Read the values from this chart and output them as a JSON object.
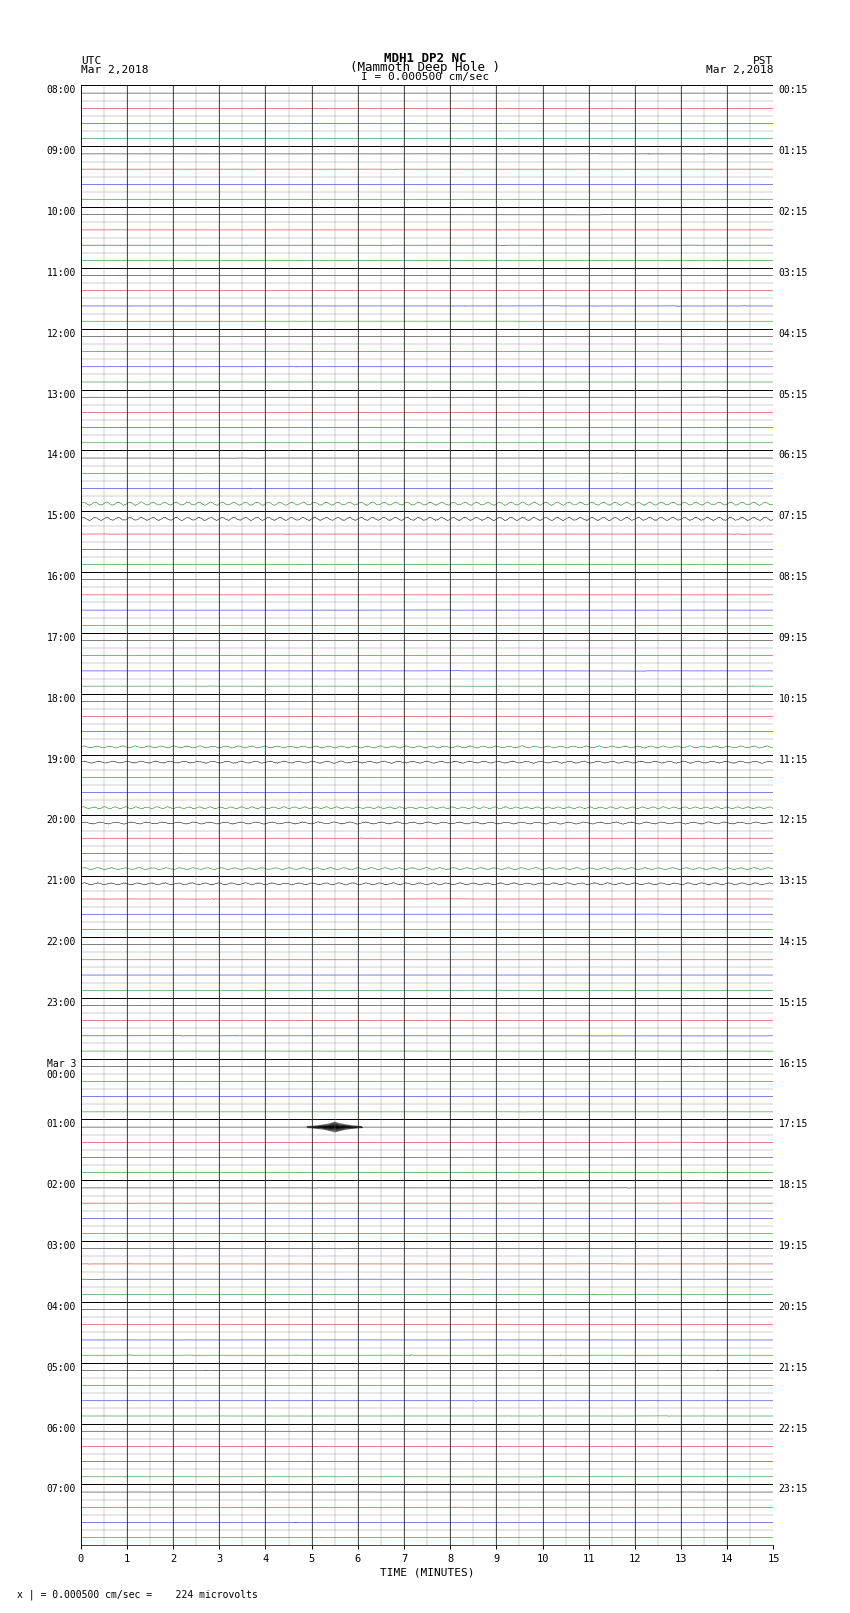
{
  "title_line1": "MDH1 DP2 NC",
  "title_line2": "(Mammoth Deep Hole )",
  "scale_label": "I = 0.000500 cm/sec",
  "left_label_top": "UTC",
  "left_label_date": "Mar 2,2018",
  "right_label_top": "PST",
  "right_label_date": "Mar 2,2018",
  "bottom_note": "x | = 0.000500 cm/sec =    224 microvolts",
  "xlabel": "TIME (MINUTES)",
  "hours_utc": [
    "08:00",
    "09:00",
    "10:00",
    "11:00",
    "12:00",
    "13:00",
    "14:00",
    "15:00",
    "16:00",
    "17:00",
    "18:00",
    "19:00",
    "20:00",
    "21:00",
    "22:00",
    "23:00",
    "Mar 3\n00:00",
    "01:00",
    "02:00",
    "03:00",
    "04:00",
    "05:00",
    "06:00",
    "07:00"
  ],
  "hours_pst": [
    "00:15",
    "01:15",
    "02:15",
    "03:15",
    "04:15",
    "05:15",
    "06:15",
    "07:15",
    "08:15",
    "09:15",
    "10:15",
    "11:15",
    "12:15",
    "13:15",
    "14:15",
    "15:15",
    "16:15",
    "17:15",
    "18:15",
    "19:15",
    "20:15",
    "21:15",
    "22:15",
    "23:15"
  ],
  "num_rows": 96,
  "total_minutes": 15,
  "bg_color": "#ffffff",
  "grid_major_color": "#000000",
  "grid_minor_color": "#888888",
  "row_colors": [
    "#000000",
    "#cc0000",
    "#0000cc",
    "#007700"
  ],
  "noise_amp": 0.006,
  "spike_amp": 0.25
}
